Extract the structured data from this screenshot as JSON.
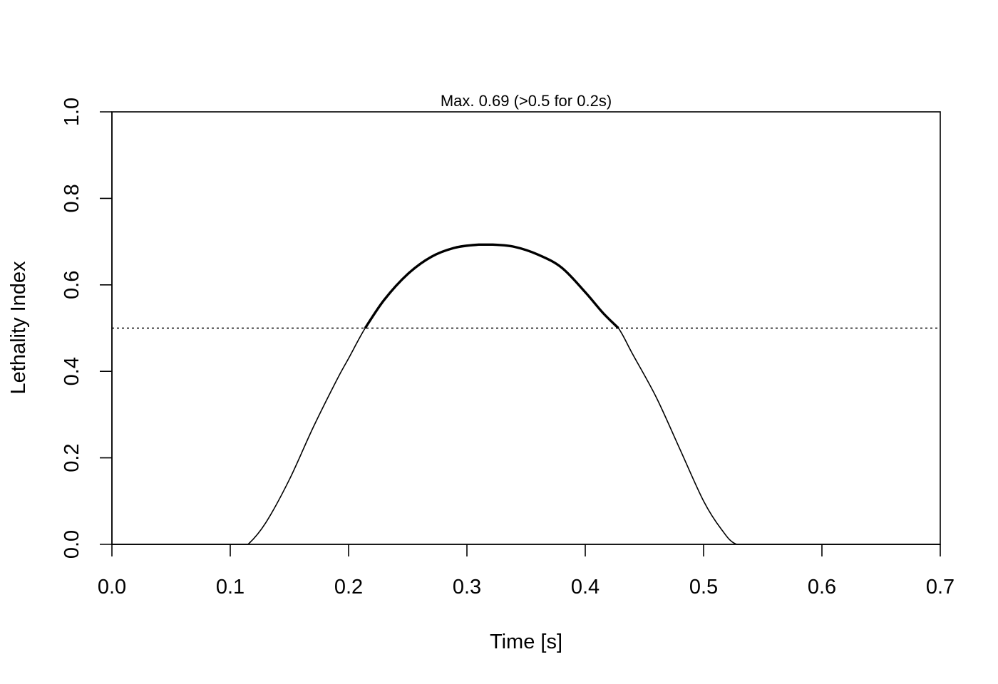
{
  "chart_data": {
    "type": "line",
    "title": "Max. 0.69 (>0.5 for 0.2s)",
    "xlabel": "Time [s]",
    "ylabel": "Lethality Index",
    "xlim": [
      0,
      0.7
    ],
    "ylim": [
      0,
      1
    ],
    "x_ticks": [
      "0.0",
      "0.1",
      "0.2",
      "0.3",
      "0.4",
      "0.5",
      "0.6",
      "0.7"
    ],
    "y_ticks": [
      "0.0",
      "0.2",
      "0.4",
      "0.6",
      "0.8",
      "1.0"
    ],
    "x_tick_values": [
      0,
      0.1,
      0.2,
      0.3,
      0.4,
      0.5,
      0.6,
      0.7
    ],
    "y_tick_values": [
      0,
      0.2,
      0.4,
      0.6,
      0.8,
      1.0
    ],
    "grid": false,
    "threshold": 0.5,
    "series": [
      {
        "color": "#000000",
        "x": [
          0.0,
          0.05,
          0.1,
          0.11,
          0.115,
          0.13,
          0.15,
          0.17,
          0.19,
          0.2,
          0.214,
          0.23,
          0.25,
          0.27,
          0.29,
          0.31,
          0.322,
          0.34,
          0.36,
          0.38,
          0.4,
          0.415,
          0.428,
          0.44,
          0.46,
          0.48,
          0.5,
          0.515,
          0.528,
          0.55,
          0.6,
          0.65,
          0.7
        ],
        "y": [
          0,
          0,
          0,
          0,
          0,
          0.05,
          0.15,
          0.27,
          0.38,
          0.43,
          0.5,
          0.565,
          0.625,
          0.665,
          0.686,
          0.693,
          0.693,
          0.688,
          0.67,
          0.64,
          0.583,
          0.535,
          0.5,
          0.44,
          0.34,
          0.22,
          0.1,
          0.035,
          0,
          0,
          0,
          0,
          0
        ]
      }
    ]
  }
}
